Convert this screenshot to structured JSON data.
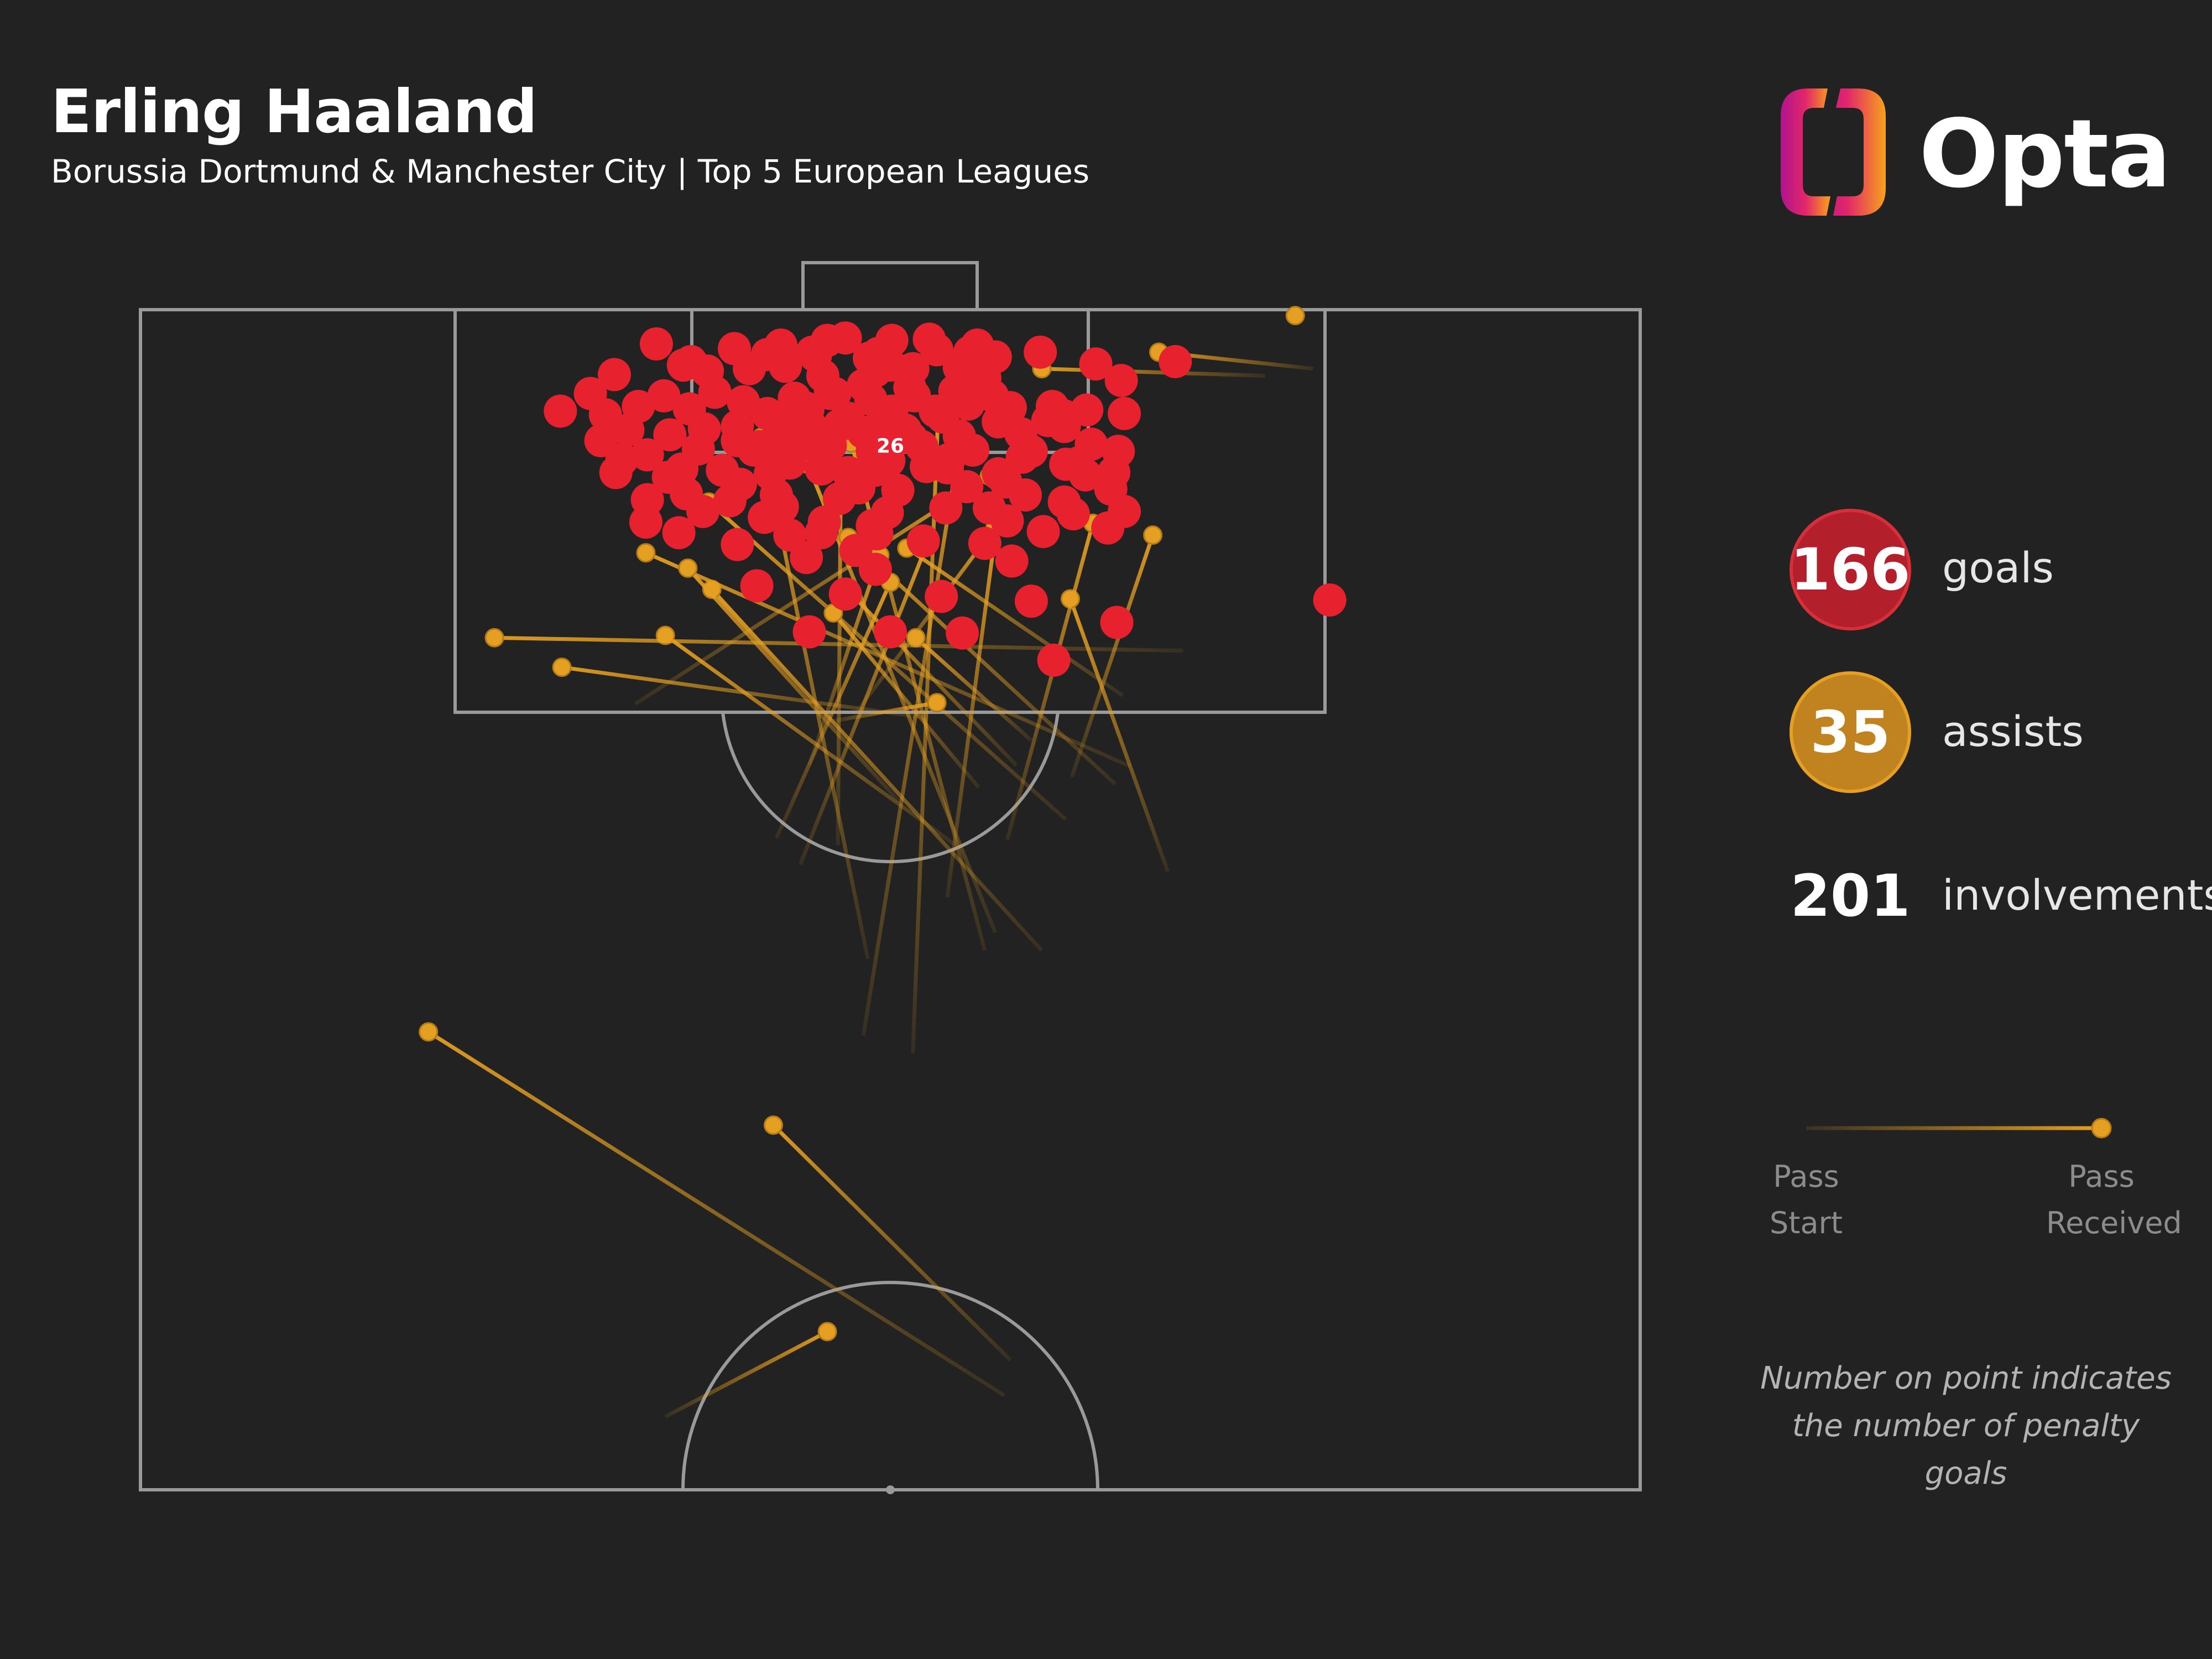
{
  "header": {
    "title": "Erling Haaland",
    "subtitle": "Borussia Dortmund & Manchester City | Top 5 European Leagues"
  },
  "logo": {
    "text": "Opta"
  },
  "stats": {
    "goals": {
      "value": "166",
      "label": "goals"
    },
    "assists": {
      "value": "35",
      "label": "assists"
    },
    "involvements": {
      "value": "201",
      "label": "involvements"
    }
  },
  "legend": {
    "pass_start": "Pass\nStart",
    "pass_received": "Pass\nReceived"
  },
  "note": "Number on point indicates\nthe number of penalty goals",
  "colors": {
    "background": "#222222",
    "goal": "#e8212f",
    "assist": "#e5a023",
    "pitch_lines": "#9a9a9a",
    "goal_badge": "#b3202b"
  },
  "chart_data": {
    "type": "scatter",
    "penalty_marker": {
      "label": "26",
      "x": 50,
      "y": 11.5
    },
    "goals": [
      [
        34.4,
        2.9
      ],
      [
        39.6,
        3.3
      ],
      [
        42.7,
        3.0
      ],
      [
        45.8,
        2.6
      ],
      [
        47.0,
        2.4
      ],
      [
        50.1,
        2.6
      ],
      [
        52.6,
        2.5
      ],
      [
        55.8,
        3.0
      ],
      [
        41.8,
        3.8
      ],
      [
        44.8,
        3.6
      ],
      [
        49.2,
        3.7
      ],
      [
        53.1,
        3.4
      ],
      [
        57.0,
        4.0
      ],
      [
        60.0,
        3.6
      ],
      [
        31.6,
        5.5
      ],
      [
        37.8,
        5.2
      ],
      [
        43.0,
        4.8
      ],
      [
        45.5,
        5.6
      ],
      [
        49.0,
        5.2
      ],
      [
        51.5,
        5.0
      ],
      [
        54.6,
        4.9
      ],
      [
        56.3,
        5.8
      ],
      [
        63.7,
        4.6
      ],
      [
        65.4,
        6.0
      ],
      [
        30.0,
        7.1
      ],
      [
        34.9,
        7.3
      ],
      [
        40.2,
        7.8
      ],
      [
        43.6,
        7.5
      ],
      [
        46.0,
        7.1
      ],
      [
        48.7,
        7.6
      ],
      [
        51.6,
        7.3
      ],
      [
        54.3,
        6.9
      ],
      [
        56.8,
        7.3
      ],
      [
        58.0,
        8.3
      ],
      [
        28.0,
        8.6
      ],
      [
        31.0,
        8.9
      ],
      [
        33.2,
        8.2
      ],
      [
        41.8,
        8.8
      ],
      [
        44.3,
        8.3
      ],
      [
        47.2,
        9.2
      ],
      [
        50.1,
        8.6
      ],
      [
        53.5,
        9.1
      ],
      [
        55.2,
        8.0
      ],
      [
        60.5,
        9.4
      ],
      [
        63.1,
        8.5
      ],
      [
        65.6,
        8.8
      ],
      [
        32.5,
        10.2
      ],
      [
        35.3,
        10.6
      ],
      [
        37.6,
        10.1
      ],
      [
        39.8,
        9.9
      ],
      [
        42.8,
        9.9
      ],
      [
        46.6,
        9.8
      ],
      [
        48.2,
        10.4
      ],
      [
        51.0,
        10.2
      ],
      [
        58.7,
        10.5
      ],
      [
        61.6,
        9.9
      ],
      [
        33.8,
        12.3
      ],
      [
        37.2,
        11.8
      ],
      [
        40.9,
        11.9
      ],
      [
        43.1,
        12.2
      ],
      [
        45.2,
        11.8
      ],
      [
        48.8,
        12.0
      ],
      [
        52.1,
        11.6
      ],
      [
        55.5,
        11.9
      ],
      [
        59.4,
        12.0
      ],
      [
        63.4,
        11.4
      ],
      [
        65.2,
        12.0
      ],
      [
        31.7,
        13.8
      ],
      [
        35.2,
        14.2
      ],
      [
        38.8,
        13.6
      ],
      [
        42.0,
        13.9
      ],
      [
        45.4,
        13.5
      ],
      [
        49.0,
        13.6
      ],
      [
        53.8,
        13.4
      ],
      [
        57.2,
        13.9
      ],
      [
        62.5,
        13.0
      ],
      [
        64.9,
        13.8
      ],
      [
        33.8,
        16.1
      ],
      [
        36.4,
        15.6
      ],
      [
        39.3,
        16.2
      ],
      [
        42.4,
        15.7
      ],
      [
        46.6,
        16.0
      ],
      [
        50.5,
        15.3
      ],
      [
        55.1,
        15.0
      ],
      [
        59.0,
        15.7
      ],
      [
        61.6,
        16.3
      ],
      [
        33.7,
        18.0
      ],
      [
        37.5,
        17.1
      ],
      [
        41.6,
        17.6
      ],
      [
        45.6,
        18.0
      ],
      [
        49.8,
        17.2
      ],
      [
        53.7,
        16.8
      ],
      [
        57.8,
        17.9
      ],
      [
        62.2,
        17.3
      ],
      [
        65.6,
        17.1
      ],
      [
        39.8,
        19.9
      ],
      [
        43.3,
        19.1
      ],
      [
        47.7,
        20.4
      ],
      [
        52.2,
        19.6
      ],
      [
        56.3,
        19.8
      ],
      [
        60.2,
        18.8
      ],
      [
        64.5,
        18.5
      ],
      [
        35.9,
        18.9
      ],
      [
        44.4,
        21.0
      ],
      [
        49.0,
        22.0
      ],
      [
        41.1,
        23.4
      ],
      [
        47.0,
        24.1
      ],
      [
        53.4,
        24.3
      ],
      [
        59.4,
        24.7
      ],
      [
        65.1,
        26.5
      ],
      [
        44.6,
        27.3
      ],
      [
        50.0,
        27.3
      ],
      [
        54.8,
        27.4
      ],
      [
        60.9,
        29.7
      ],
      [
        69.0,
        4.4
      ],
      [
        43.3,
        13.0
      ],
      [
        46.0,
        11.5
      ],
      [
        40.0,
        14.8
      ],
      [
        50.0,
        4.7
      ],
      [
        48.2,
        6.4
      ],
      [
        38.3,
        7.0
      ],
      [
        36.6,
        8.4
      ],
      [
        51.3,
        6.6
      ],
      [
        53.9,
        12.7
      ],
      [
        56.6,
        16.8
      ],
      [
        61.7,
        13.1
      ],
      [
        36.7,
        4.4
      ],
      [
        40.6,
        5.0
      ],
      [
        58.8,
        12.5
      ],
      [
        42.8,
        16.7
      ],
      [
        47.2,
        13.8
      ],
      [
        57.7,
        14.6
      ],
      [
        51.4,
        10.9
      ],
      [
        47.9,
        15.1
      ],
      [
        39.8,
        11.1
      ],
      [
        44.7,
        9.9
      ],
      [
        54.6,
        10.7
      ],
      [
        30.7,
        11.1
      ],
      [
        52.4,
        13.3
      ],
      [
        36.2,
        4.7
      ],
      [
        45.0,
        3.9
      ],
      [
        48.6,
        4.1
      ],
      [
        55.3,
        3.6
      ],
      [
        61.6,
        9.0
      ],
      [
        32.1,
        12.7
      ],
      [
        63.0,
        14.0
      ],
      [
        58.1,
        21.3
      ],
      [
        44.5,
        8.5
      ],
      [
        49.9,
        12.8
      ],
      [
        42.5,
        9.6
      ],
      [
        46.3,
        7.1
      ],
      [
        79.3,
        24.6
      ],
      [
        41.3,
        11.6
      ],
      [
        49.5,
        9.3
      ],
      [
        36.1,
        13.5
      ],
      [
        45.4,
        18.9
      ],
      [
        49.1,
        19.0
      ],
      [
        64.7,
        15.2
      ],
      [
        43.7,
        11.4
      ],
      [
        60.8,
        8.2
      ],
      [
        53.0,
        8.6
      ],
      [
        48.8,
        18.3
      ],
      [
        57.2,
        9.5
      ]
    ],
    "assists": [
      {
        "start": [
          48.2,
          61.5
        ],
        "end": [
          55.2,
          6.9
        ]
      },
      {
        "start": [
          51.5,
          63.0
        ],
        "end": [
          53.2,
          8.4
        ]
      },
      {
        "start": [
          56.3,
          54.3
        ],
        "end": [
          47.4,
          11.3
        ]
      },
      {
        "start": [
          48.5,
          55.0
        ],
        "end": [
          41.4,
          10.8
        ]
      },
      {
        "start": [
          68.5,
          47.6
        ],
        "end": [
          62.0,
          24.5
        ]
      },
      {
        "start": [
          53.8,
          49.8
        ],
        "end": [
          57.1,
          18.0
        ]
      },
      {
        "start": [
          60.1,
          54.3
        ],
        "end": [
          38.1,
          23.7
        ]
      },
      {
        "start": [
          57.0,
          52.8
        ],
        "end": [
          44.5,
          13.1
        ]
      },
      {
        "start": [
          46.5,
          45.4
        ],
        "end": [
          46.7,
          13.6
        ]
      },
      {
        "start": [
          44.0,
          47.0
        ],
        "end": [
          52.5,
          19.7
        ]
      },
      {
        "start": [
          61.7,
          43.2
        ],
        "end": [
          37.9,
          16.3
        ]
      },
      {
        "start": [
          65.0,
          40.2
        ],
        "end": [
          47.2,
          19.3
        ]
      },
      {
        "start": [
          57.8,
          44.9
        ],
        "end": [
          63.5,
          18.1
        ]
      },
      {
        "start": [
          62.1,
          39.6
        ],
        "end": [
          67.5,
          19.1
        ]
      },
      {
        "start": [
          66.0,
          38.7
        ],
        "end": [
          33.7,
          20.6
        ]
      },
      {
        "start": [
          42.4,
          44.8
        ],
        "end": [
          50.0,
          23.1
        ]
      },
      {
        "start": [
          50.6,
          41.7
        ],
        "end": [
          36.5,
          21.9
        ]
      },
      {
        "start": [
          44.6,
          38.6
        ],
        "end": [
          49.3,
          20.8
        ]
      },
      {
        "start": [
          54.5,
          45.5
        ],
        "end": [
          35.0,
          27.6
        ]
      },
      {
        "start": [
          55.9,
          40.5
        ],
        "end": [
          46.2,
          25.7
        ]
      },
      {
        "start": [
          47.8,
          34.0
        ],
        "end": [
          57.0,
          18.4
        ]
      },
      {
        "start": [
          59.4,
          36.5
        ],
        "end": [
          51.7,
          27.8
        ]
      },
      {
        "start": [
          65.5,
          32.7
        ],
        "end": [
          51.1,
          20.2
        ]
      },
      {
        "start": [
          46.0,
          34.9
        ],
        "end": [
          53.1,
          33.3
        ]
      },
      {
        "start": [
          69.5,
          28.9
        ],
        "end": [
          23.6,
          27.8
        ]
      },
      {
        "start": [
          51.9,
          34.5
        ],
        "end": [
          28.1,
          30.3
        ]
      },
      {
        "start": [
          58.4,
          38.6
        ],
        "end": [
          47.1,
          23.7
        ]
      },
      {
        "start": [
          33.0,
          33.4
        ],
        "end": [
          56.6,
          14.1
        ]
      },
      {
        "start": [
          75.0,
          5.6
        ],
        "end": [
          60.1,
          5.0
        ]
      },
      {
        "start": [
          78.2,
          5.0
        ],
        "end": [
          67.9,
          3.6
        ]
      },
      {
        "start": [
          77.0,
          0.0
        ],
        "end": [
          77.0,
          0.5
        ]
      },
      {
        "start": [
          62.3,
          9.1
        ],
        "end": [
          60.5,
          8.8
        ]
      },
      {
        "start": [
          57.6,
          92.0
        ],
        "end": [
          19.2,
          61.2
        ]
      },
      {
        "start": [
          58.0,
          89.0
        ],
        "end": [
          42.2,
          69.1
        ]
      },
      {
        "start": [
          35.0,
          93.8
        ],
        "end": [
          45.8,
          86.6
        ]
      }
    ]
  }
}
